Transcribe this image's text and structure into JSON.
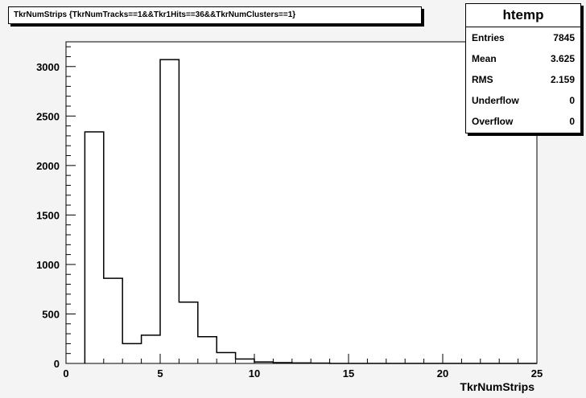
{
  "title": "TkrNumStrips {TkrNumTracks==1&&Tkr1Hits==36&&TkrNumClusters==1}",
  "stats": {
    "name": "htemp",
    "rows": [
      {
        "label": "Entries",
        "value": "7845"
      },
      {
        "label": "Mean",
        "value": "3.625"
      },
      {
        "label": "RMS",
        "value": "2.159"
      },
      {
        "label": "Underflow",
        "value": "0"
      },
      {
        "label": "Overflow",
        "value": "0"
      }
    ]
  },
  "chart_data": {
    "type": "bar",
    "title": "TkrNumStrips {TkrNumTracks==1&&Tkr1Hits==36&&TkrNumClusters==1}",
    "xlabel": "TkrNumStrips",
    "ylabel": "",
    "xlim": [
      0,
      25
    ],
    "ylim": [
      0,
      3250
    ],
    "bin_width": 1,
    "x": [
      1,
      2,
      3,
      4,
      5,
      6,
      7,
      8,
      9,
      10,
      11,
      12,
      13,
      14,
      15,
      16,
      17,
      18,
      19,
      20,
      21,
      22,
      23,
      24
    ],
    "values": [
      2340,
      860,
      200,
      285,
      3070,
      620,
      270,
      110,
      45,
      15,
      8,
      5,
      3,
      0,
      0,
      0,
      0,
      0,
      0,
      0,
      0,
      0,
      0,
      0
    ],
    "x_ticks": [
      "0",
      "5",
      "10",
      "15",
      "20",
      "25"
    ],
    "y_ticks": [
      "0",
      "500",
      "1000",
      "1500",
      "2000",
      "2500",
      "3000"
    ],
    "grid": false,
    "line_color": "#000000"
  }
}
